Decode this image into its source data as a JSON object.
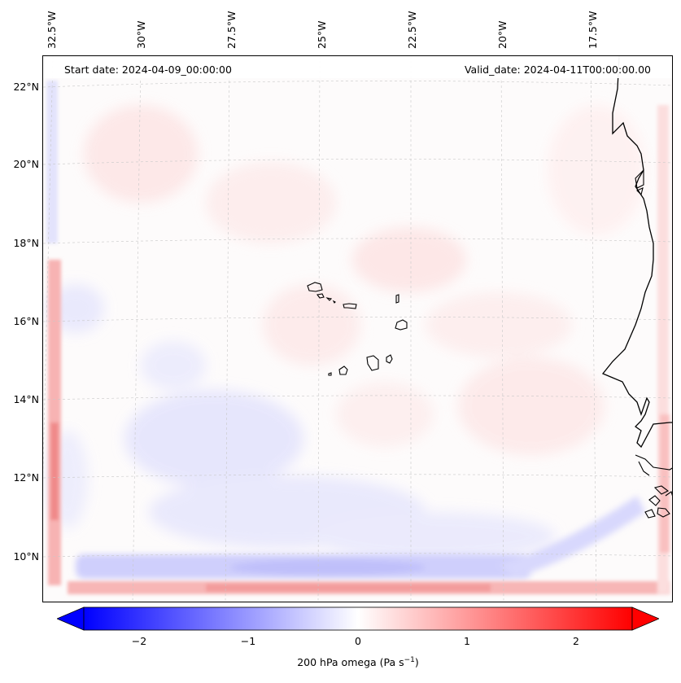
{
  "header": {
    "start_date": "Start date: 2024-04-09_00:00:00",
    "valid_date": "Valid_date: 2024-04-11T00:00:00.00"
  },
  "axes": {
    "lon_ticks": [
      "32.5°W",
      "30°W",
      "27.5°W",
      "25°W",
      "22.5°W",
      "20°W",
      "17.5°W"
    ],
    "lat_ticks": [
      "22°N",
      "20°N",
      "18°N",
      "16°N",
      "14°N",
      "12°N",
      "10°N"
    ]
  },
  "colorbar": {
    "ticks": [
      "−2",
      "−1",
      "0",
      "1",
      "2"
    ],
    "label": "200 hPa omega (Pa s",
    "label_sup": "−1",
    "label_close": ")",
    "cmap": "bwr",
    "range": [
      -2.6,
      2.6
    ],
    "extend": "both",
    "min_color": "#0000ff",
    "mid_color": "#ffffff",
    "max_color": "#ff0000"
  },
  "map": {
    "field": "200 hPa omega",
    "gridlines": true,
    "coastline_color": "#000000",
    "features": [
      "Cape Verde islands",
      "West African coastline"
    ]
  }
}
